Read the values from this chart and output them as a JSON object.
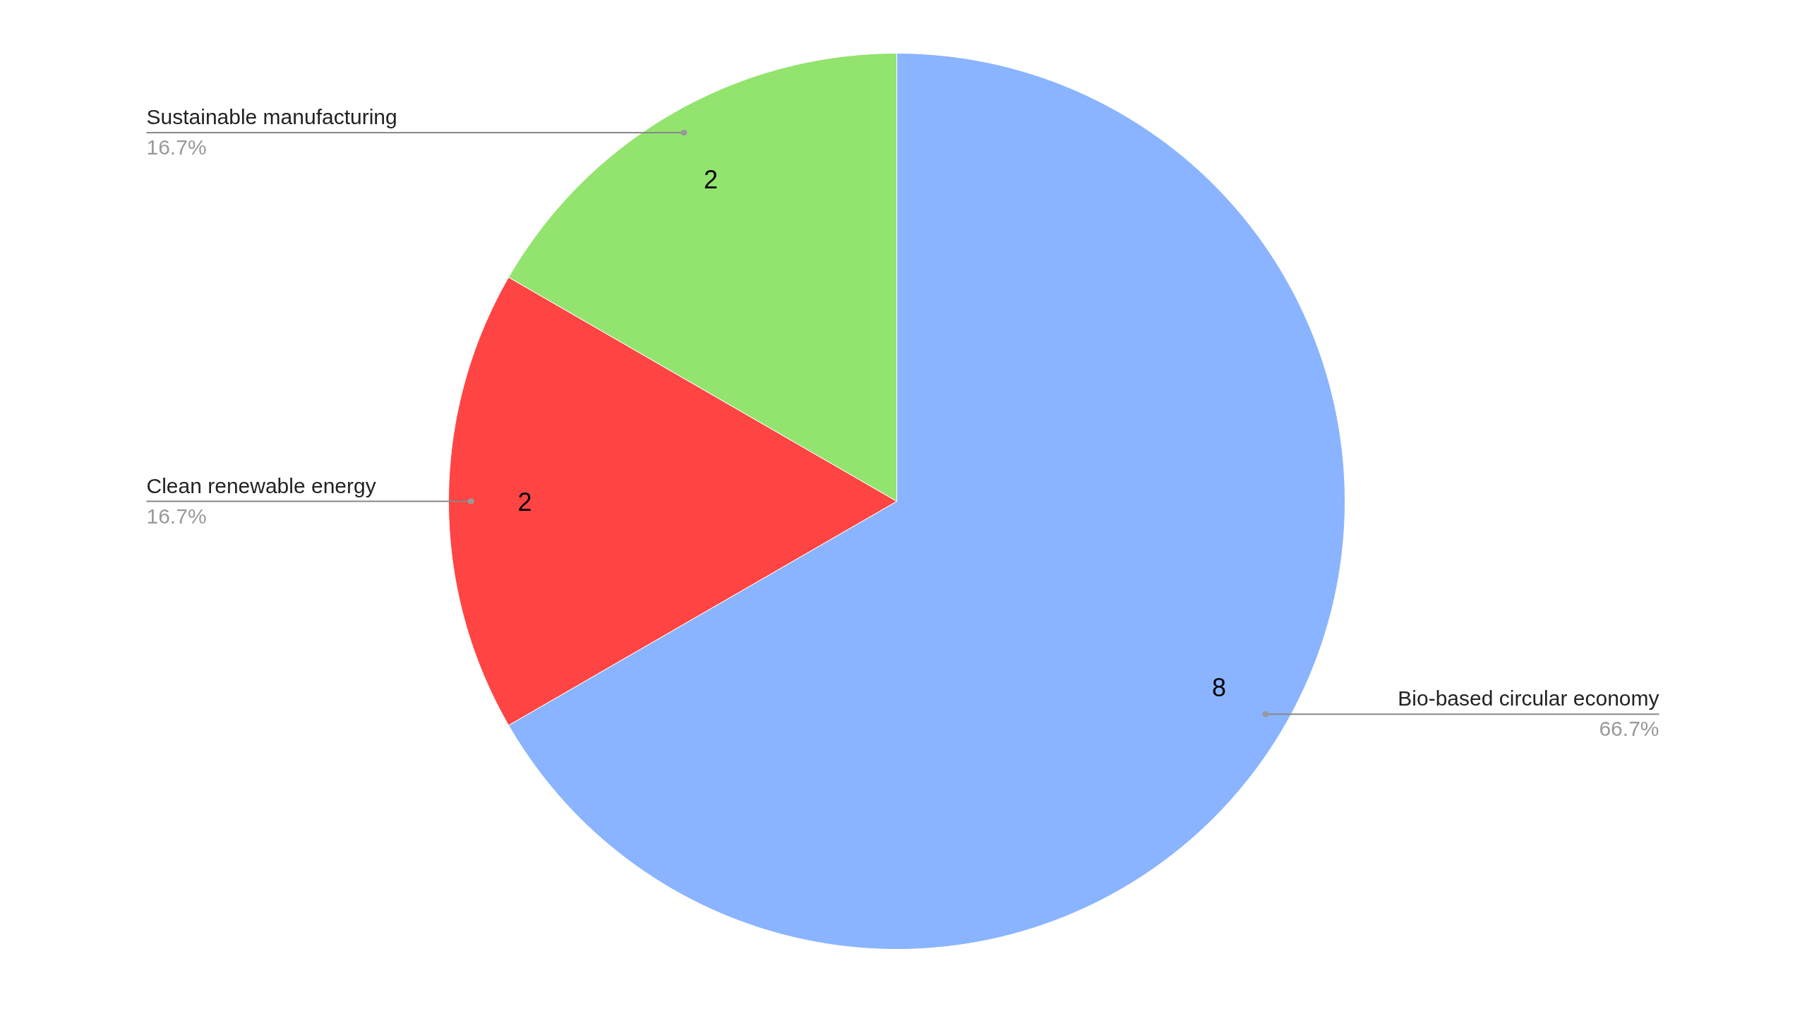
{
  "chart_data": {
    "type": "pie",
    "categories": [
      "Bio-based circular economy",
      "Clean renewable energy",
      "Sustainable manufacturing"
    ],
    "values": [
      8,
      2,
      2
    ],
    "colors": [
      "#8ab4ff",
      "#ff4444",
      "#93e36f"
    ],
    "value_labels": [
      "8",
      "2",
      "2"
    ],
    "annotations": [
      "66.7%",
      "16.7%",
      "16.7%"
    ]
  }
}
